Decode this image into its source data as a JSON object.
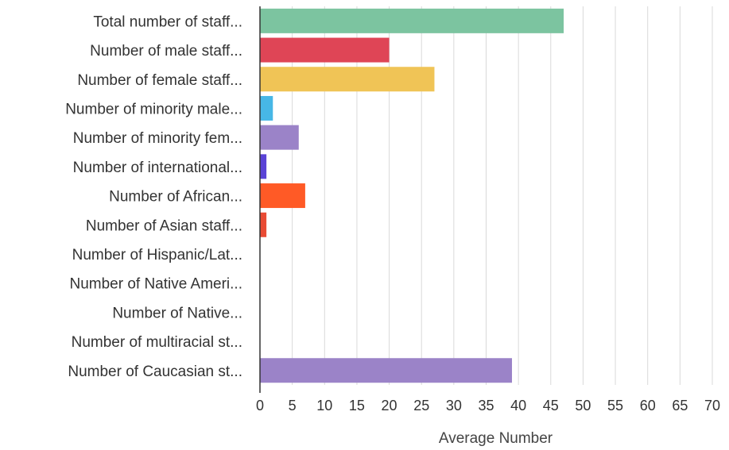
{
  "chart_data": {
    "type": "bar",
    "orientation": "horizontal",
    "xlabel": "Average Number",
    "xlim": [
      0,
      70
    ],
    "xticks": [
      "0",
      "5",
      "10",
      "15",
      "20",
      "25",
      "30",
      "35",
      "40",
      "45",
      "50",
      "55",
      "60",
      "65",
      "70"
    ],
    "grid": true,
    "legend": "none",
    "categories": [
      "Total number of staff...",
      "Number of male staff...",
      "Number of female staff...",
      "Number of minority male...",
      "Number of minority fem...",
      "Number of international...",
      "Number of African...",
      "Number of Asian staff...",
      "Number of Hispanic/Lat...",
      "Number of Native Ameri...",
      "Number of Native...",
      "Number of multiracial st...",
      "Number of Caucasian st..."
    ],
    "values": [
      47,
      20,
      27,
      2,
      6,
      1,
      7,
      1,
      0,
      0,
      0,
      0,
      39
    ],
    "colors": [
      "#7cc4a0",
      "#df4556",
      "#f0c456",
      "#47b7e6",
      "#9b83c8",
      "#5a43d6",
      "#ff5a26",
      "#e94b34",
      "#9b83c8",
      "#9b83c8",
      "#9b83c8",
      "#9b83c8",
      "#9b83c8"
    ]
  }
}
